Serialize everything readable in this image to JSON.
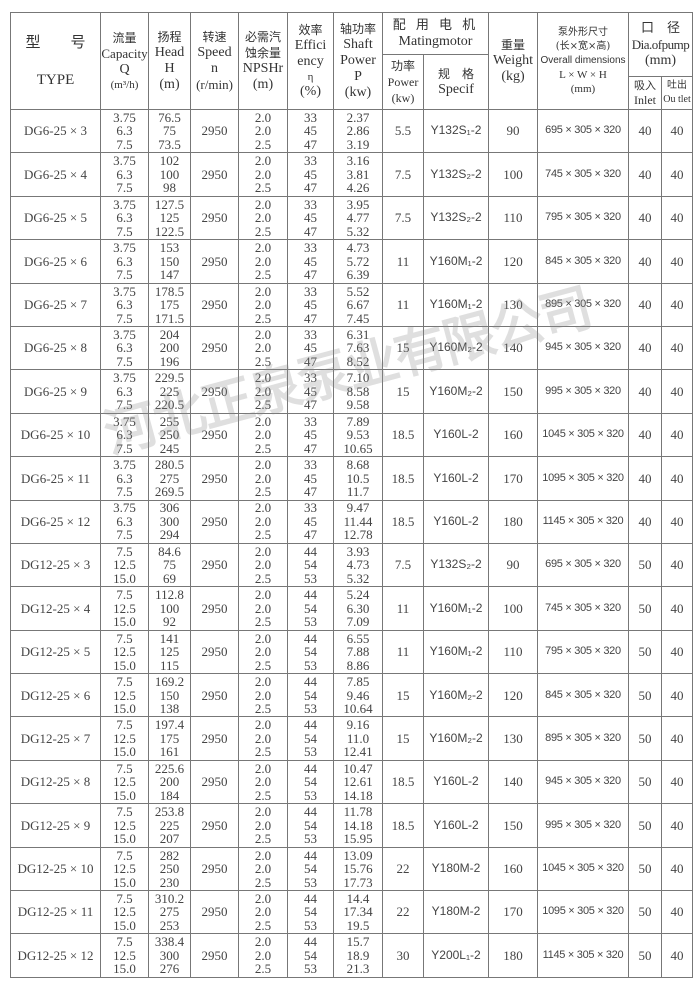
{
  "header": {
    "type_zh": "型　　号",
    "type_en": "TYPE",
    "capacity_zh": "流量",
    "capacity_en": "Capacity",
    "capacity_sym": "Q",
    "capacity_unit": "(m³/h)",
    "head_zh": "扬程",
    "head_en": "Head",
    "head_sym": "H",
    "head_unit": "(m)",
    "speed_zh": "转速",
    "speed_en": "Speed",
    "speed_sym": "n",
    "speed_unit": "(r/min)",
    "npsh_zh1": "必需汽",
    "npsh_zh2": "蚀余量",
    "npsh_en": "NPSHr",
    "npsh_unit": "(m)",
    "eff_zh": "效率",
    "eff_en1": "Effici",
    "eff_en2": "ency",
    "eff_sym": "η",
    "eff_unit": "(%)",
    "shaft_zh": "轴功率",
    "shaft_en1": "Shaft",
    "shaft_en2": "Power",
    "shaft_sym": "P",
    "shaft_unit": "(kw)",
    "motor_zh": "配 用 电 机",
    "motor_en": "Matingmotor",
    "motor_power_zh": "功率",
    "motor_power_en": "Power",
    "motor_power_unit": "(kw)",
    "motor_spec_zh": "规　格",
    "motor_spec_en": "Specif",
    "weight_zh": "重量",
    "weight_en": "Weight",
    "weight_unit": "(kg)",
    "dims_zh1": "泵外形尺寸",
    "dims_zh2": "(长×宽×高)",
    "dims_en": "Overall dimensions",
    "dims_sym": "L × W × H",
    "dims_unit": "(mm)",
    "dia_zh": "口　径",
    "dia_en": "Dia.ofpump",
    "dia_unit": "(mm)",
    "inlet_zh": "吸入",
    "inlet_en": "Inlet",
    "outlet_zh": "吐出",
    "outlet_en": "Ou tlet"
  },
  "rows": [
    {
      "type": "DG6-25 × 3",
      "q": [
        "3.75",
        "6.3",
        "7.5"
      ],
      "h": [
        "76.5",
        "75",
        "73.5"
      ],
      "speed": "2950",
      "npsh": [
        "2.0",
        "2.0",
        "2.5"
      ],
      "eff": [
        "33",
        "45",
        "47"
      ],
      "shaft": [
        "2.37",
        "2.86",
        "3.19"
      ],
      "motor_power": "5.5",
      "motor_spec": "Y132S₁-2",
      "weight": "90",
      "dims": "695 × 305 × 320",
      "inlet": "40",
      "outlet": "40"
    },
    {
      "type": "DG6-25 × 4",
      "q": [
        "3.75",
        "6.3",
        "7.5"
      ],
      "h": [
        "102",
        "100",
        "98"
      ],
      "speed": "2950",
      "npsh": [
        "2.0",
        "2.0",
        "2.5"
      ],
      "eff": [
        "33",
        "45",
        "47"
      ],
      "shaft": [
        "3.16",
        "3.81",
        "4.26"
      ],
      "motor_power": "7.5",
      "motor_spec": "Y132S₂-2",
      "weight": "100",
      "dims": "745 × 305 × 320",
      "inlet": "40",
      "outlet": "40"
    },
    {
      "type": "DG6-25 × 5",
      "q": [
        "3.75",
        "6.3",
        "7.5"
      ],
      "h": [
        "127.5",
        "125",
        "122.5"
      ],
      "speed": "2950",
      "npsh": [
        "2.0",
        "2.0",
        "2.5"
      ],
      "eff": [
        "33",
        "45",
        "47"
      ],
      "shaft": [
        "3.95",
        "4.77",
        "5.32"
      ],
      "motor_power": "7.5",
      "motor_spec": "Y132S₂-2",
      "weight": "110",
      "dims": "795 × 305 × 320",
      "inlet": "40",
      "outlet": "40"
    },
    {
      "type": "DG6-25 × 6",
      "q": [
        "3.75",
        "6.3",
        "7.5"
      ],
      "h": [
        "153",
        "150",
        "147"
      ],
      "speed": "2950",
      "npsh": [
        "2.0",
        "2.0",
        "2.5"
      ],
      "eff": [
        "33",
        "45",
        "47"
      ],
      "shaft": [
        "4.73",
        "5.72",
        "6.39"
      ],
      "motor_power": "11",
      "motor_spec": "Y160M₁-2",
      "weight": "120",
      "dims": "845 × 305 × 320",
      "inlet": "40",
      "outlet": "40"
    },
    {
      "type": "DG6-25 × 7",
      "q": [
        "3.75",
        "6.3",
        "7.5"
      ],
      "h": [
        "178.5",
        "175",
        "171.5"
      ],
      "speed": "2950",
      "npsh": [
        "2.0",
        "2.0",
        "2.5"
      ],
      "eff": [
        "33",
        "45",
        "47"
      ],
      "shaft": [
        "5.52",
        "6.67",
        "7.45"
      ],
      "motor_power": "11",
      "motor_spec": "Y160M₁-2",
      "weight": "130",
      "dims": "895 × 305 × 320",
      "inlet": "40",
      "outlet": "40"
    },
    {
      "type": "DG6-25 × 8",
      "q": [
        "3.75",
        "6.3",
        "7.5"
      ],
      "h": [
        "204",
        "200",
        "196"
      ],
      "speed": "2950",
      "npsh": [
        "2.0",
        "2.0",
        "2.5"
      ],
      "eff": [
        "33",
        "45",
        "47"
      ],
      "shaft": [
        "6.31",
        "7.63",
        "8.52"
      ],
      "motor_power": "15",
      "motor_spec": "Y160M₂-2",
      "weight": "140",
      "dims": "945 × 305 × 320",
      "inlet": "40",
      "outlet": "40"
    },
    {
      "type": "DG6-25 × 9",
      "q": [
        "3.75",
        "6.3",
        "7.5"
      ],
      "h": [
        "229.5",
        "225",
        "220.5"
      ],
      "speed": "2950",
      "npsh": [
        "2.0",
        "2.0",
        "2.5"
      ],
      "eff": [
        "33",
        "45",
        "47"
      ],
      "shaft": [
        "7.10",
        "8.58",
        "9.58"
      ],
      "motor_power": "15",
      "motor_spec": "Y160M₂-2",
      "weight": "150",
      "dims": "995 × 305 × 320",
      "inlet": "40",
      "outlet": "40"
    },
    {
      "type": "DG6-25 × 10",
      "q": [
        "3.75",
        "6.3",
        "7.5"
      ],
      "h": [
        "255",
        "250",
        "245"
      ],
      "speed": "2950",
      "npsh": [
        "2.0",
        "2.0",
        "2.5"
      ],
      "eff": [
        "33",
        "45",
        "47"
      ],
      "shaft": [
        "7.89",
        "9.53",
        "10.65"
      ],
      "motor_power": "18.5",
      "motor_spec": "Y160L-2",
      "weight": "160",
      "dims": "1045 × 305 × 320",
      "inlet": "40",
      "outlet": "40"
    },
    {
      "type": "DG6-25 × 11",
      "q": [
        "3.75",
        "6.3",
        "7.5"
      ],
      "h": [
        "280.5",
        "275",
        "269.5"
      ],
      "speed": "2950",
      "npsh": [
        "2.0",
        "2.0",
        "2.5"
      ],
      "eff": [
        "33",
        "45",
        "47"
      ],
      "shaft": [
        "8.68",
        "10.5",
        "11.7"
      ],
      "motor_power": "18.5",
      "motor_spec": "Y160L-2",
      "weight": "170",
      "dims": "1095 × 305 × 320",
      "inlet": "40",
      "outlet": "40"
    },
    {
      "type": "DG6-25 × 12",
      "q": [
        "3.75",
        "6.3",
        "7.5"
      ],
      "h": [
        "306",
        "300",
        "294"
      ],
      "speed": "2950",
      "npsh": [
        "2.0",
        "2.0",
        "2.5"
      ],
      "eff": [
        "33",
        "45",
        "47"
      ],
      "shaft": [
        "9.47",
        "11.44",
        "12.78"
      ],
      "motor_power": "18.5",
      "motor_spec": "Y160L-2",
      "weight": "180",
      "dims": "1145 × 305 × 320",
      "inlet": "40",
      "outlet": "40"
    },
    {
      "type": "DG12-25 × 3",
      "q": [
        "7.5",
        "12.5",
        "15.0"
      ],
      "h": [
        "84.6",
        "75",
        "69"
      ],
      "speed": "2950",
      "npsh": [
        "2.0",
        "2.0",
        "2.5"
      ],
      "eff": [
        "44",
        "54",
        "53"
      ],
      "shaft": [
        "3.93",
        "4.73",
        "5.32"
      ],
      "motor_power": "7.5",
      "motor_spec": "Y132S₂-2",
      "weight": "90",
      "dims": "695 × 305 × 320",
      "inlet": "50",
      "outlet": "40"
    },
    {
      "type": "DG12-25 × 4",
      "q": [
        "7.5",
        "12.5",
        "15.0"
      ],
      "h": [
        "112.8",
        "100",
        "92"
      ],
      "speed": "2950",
      "npsh": [
        "2.0",
        "2.0",
        "2.5"
      ],
      "eff": [
        "44",
        "54",
        "53"
      ],
      "shaft": [
        "5.24",
        "6.30",
        "7.09"
      ],
      "motor_power": "11",
      "motor_spec": "Y160M₁-2",
      "weight": "100",
      "dims": "745 × 305 × 320",
      "inlet": "50",
      "outlet": "40"
    },
    {
      "type": "DG12-25 × 5",
      "q": [
        "7.5",
        "12.5",
        "15.0"
      ],
      "h": [
        "141",
        "125",
        "115"
      ],
      "speed": "2950",
      "npsh": [
        "2.0",
        "2.0",
        "2.5"
      ],
      "eff": [
        "44",
        "54",
        "53"
      ],
      "shaft": [
        "6.55",
        "7.88",
        "8.86"
      ],
      "motor_power": "11",
      "motor_spec": "Y160M₁-2",
      "weight": "110",
      "dims": "795 × 305 × 320",
      "inlet": "50",
      "outlet": "40"
    },
    {
      "type": "DG12-25 × 6",
      "q": [
        "7.5",
        "12.5",
        "15.0"
      ],
      "h": [
        "169.2",
        "150",
        "138"
      ],
      "speed": "2950",
      "npsh": [
        "2.0",
        "2.0",
        "2.5"
      ],
      "eff": [
        "44",
        "54",
        "53"
      ],
      "shaft": [
        "7.85",
        "9.46",
        "10.64"
      ],
      "motor_power": "15",
      "motor_spec": "Y160M₂-2",
      "weight": "120",
      "dims": "845 × 305 × 320",
      "inlet": "50",
      "outlet": "40"
    },
    {
      "type": "DG12-25 × 7",
      "q": [
        "7.5",
        "12.5",
        "15.0"
      ],
      "h": [
        "197.4",
        "175",
        "161"
      ],
      "speed": "2950",
      "npsh": [
        "2.0",
        "2.0",
        "2.5"
      ],
      "eff": [
        "44",
        "54",
        "53"
      ],
      "shaft": [
        "9.16",
        "11.0",
        "12.41"
      ],
      "motor_power": "15",
      "motor_spec": "Y160M₂-2",
      "weight": "130",
      "dims": "895 × 305 × 320",
      "inlet": "50",
      "outlet": "40"
    },
    {
      "type": "DG12-25 × 8",
      "q": [
        "7.5",
        "12.5",
        "15.0"
      ],
      "h": [
        "225.6",
        "200",
        "184"
      ],
      "speed": "2950",
      "npsh": [
        "2.0",
        "2.0",
        "2.5"
      ],
      "eff": [
        "44",
        "54",
        "53"
      ],
      "shaft": [
        "10.47",
        "12.61",
        "14.18"
      ],
      "motor_power": "18.5",
      "motor_spec": "Y160L-2",
      "weight": "140",
      "dims": "945 × 305 × 320",
      "inlet": "50",
      "outlet": "40"
    },
    {
      "type": "DG12-25 × 9",
      "q": [
        "7.5",
        "12.5",
        "15.0"
      ],
      "h": [
        "253.8",
        "225",
        "207"
      ],
      "speed": "2950",
      "npsh": [
        "2.0",
        "2.0",
        "2.5"
      ],
      "eff": [
        "44",
        "54",
        "53"
      ],
      "shaft": [
        "11.78",
        "14.18",
        "15.95"
      ],
      "motor_power": "18.5",
      "motor_spec": "Y160L-2",
      "weight": "150",
      "dims": "995 × 305 × 320",
      "inlet": "50",
      "outlet": "40"
    },
    {
      "type": "DG12-25 × 10",
      "q": [
        "7.5",
        "12.5",
        "15.0"
      ],
      "h": [
        "282",
        "250",
        "230"
      ],
      "speed": "2950",
      "npsh": [
        "2.0",
        "2.0",
        "2.5"
      ],
      "eff": [
        "44",
        "54",
        "53"
      ],
      "shaft": [
        "13.09",
        "15.76",
        "17.73"
      ],
      "motor_power": "22",
      "motor_spec": "Y180M-2",
      "weight": "160",
      "dims": "1045 × 305 × 320",
      "inlet": "50",
      "outlet": "40"
    },
    {
      "type": "DG12-25 × 11",
      "q": [
        "7.5",
        "12.5",
        "15.0"
      ],
      "h": [
        "310.2",
        "275",
        "253"
      ],
      "speed": "2950",
      "npsh": [
        "2.0",
        "2.0",
        "2.5"
      ],
      "eff": [
        "44",
        "54",
        "53"
      ],
      "shaft": [
        "14.4",
        "17.34",
        "19.5"
      ],
      "motor_power": "22",
      "motor_spec": "Y180M-2",
      "weight": "170",
      "dims": "1095 × 305 × 320",
      "inlet": "50",
      "outlet": "40"
    },
    {
      "type": "DG12-25 × 12",
      "q": [
        "7.5",
        "12.5",
        "15.0"
      ],
      "h": [
        "338.4",
        "300",
        "276"
      ],
      "speed": "2950",
      "npsh": [
        "2.0",
        "2.0",
        "2.5"
      ],
      "eff": [
        "44",
        "54",
        "53"
      ],
      "shaft": [
        "15.7",
        "18.9",
        "21.3"
      ],
      "motor_power": "30",
      "motor_spec": "Y200L₁-2",
      "weight": "180",
      "dims": "1145 × 305 × 320",
      "inlet": "50",
      "outlet": "40"
    }
  ],
  "watermark": "河北正泉泵业有限公司"
}
